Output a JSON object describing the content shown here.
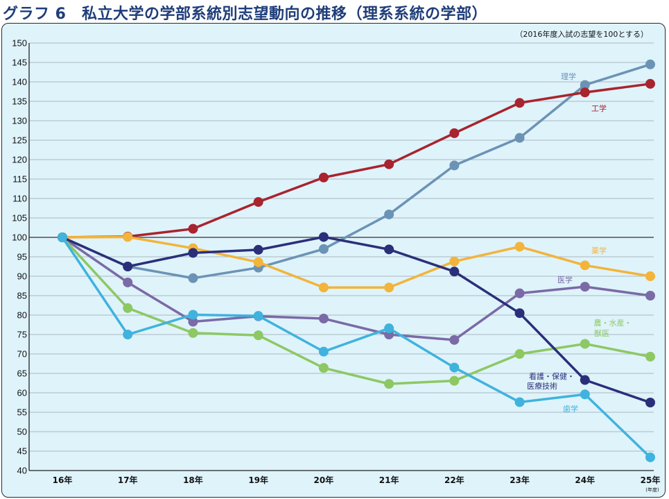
{
  "chart_data": {
    "type": "line",
    "title": "グラフ 6　私立大学の学部系統別志望動向の推移（理系系統の学部）",
    "note": "（2016年度入試の志望を100とする）",
    "x_unit": "(年度)",
    "categories": [
      "16年",
      "17年",
      "18年",
      "19年",
      "20年",
      "21年",
      "22年",
      "23年",
      "24年",
      "25年"
    ],
    "ylim": [
      40,
      150
    ],
    "yticks": [
      40,
      45,
      50,
      55,
      60,
      65,
      70,
      75,
      80,
      85,
      90,
      95,
      100,
      105,
      110,
      115,
      120,
      125,
      130,
      135,
      140,
      145,
      150
    ],
    "ytick_labels": [
      "40",
      "45",
      "50",
      "55",
      "60",
      "65",
      "70",
      "75",
      "80",
      "85",
      "90",
      "95",
      "100",
      "105",
      "110",
      "115",
      "120",
      "125",
      "130",
      "135",
      "140",
      "145",
      "150"
    ],
    "reference_line": 100,
    "grid": true,
    "series": [
      {
        "name": "理学",
        "label_lines": [
          "理学"
        ],
        "color": "#6b93b5",
        "values": [
          100,
          92.5,
          89.5,
          92.2,
          97.0,
          105.9,
          118.5,
          125.6,
          139.2,
          144.5
        ]
      },
      {
        "name": "工学",
        "label_lines": [
          "工学"
        ],
        "color": "#a8242e",
        "values": [
          100,
          100.2,
          102.2,
          109.1,
          115.4,
          118.8,
          126.8,
          134.6,
          137.3,
          139.5
        ]
      },
      {
        "name": "薬学",
        "label_lines": [
          "薬学"
        ],
        "color": "#f2b43a",
        "values": [
          100,
          100.1,
          97.2,
          93.6,
          87.1,
          87.1,
          93.8,
          97.6,
          92.8,
          90.0
        ]
      },
      {
        "name": "医学",
        "label_lines": [
          "医学"
        ],
        "color": "#7a6aa6",
        "values": [
          100,
          88.4,
          78.3,
          79.7,
          79.1,
          75.0,
          73.6,
          85.6,
          87.3,
          85.0
        ]
      },
      {
        "name": "農・水産・獣医",
        "label_lines": [
          "農・水産・",
          "獣医"
        ],
        "color": "#8dc863",
        "values": [
          100,
          81.8,
          75.4,
          74.8,
          66.4,
          62.3,
          63.1,
          70.0,
          72.6,
          69.3
        ]
      },
      {
        "name": "看護・保健・医療技術",
        "label_lines": [
          "看護・保健・",
          "医療技術"
        ],
        "color": "#2b2f7a",
        "values": [
          100,
          92.5,
          96.0,
          96.8,
          100.1,
          96.9,
          91.2,
          80.5,
          63.3,
          57.5
        ]
      },
      {
        "name": "歯学",
        "label_lines": [
          "歯学"
        ],
        "color": "#3fb3dd",
        "values": [
          100,
          75.0,
          80.1,
          79.8,
          70.6,
          76.6,
          66.5,
          57.6,
          59.6,
          43.4
        ]
      }
    ]
  }
}
